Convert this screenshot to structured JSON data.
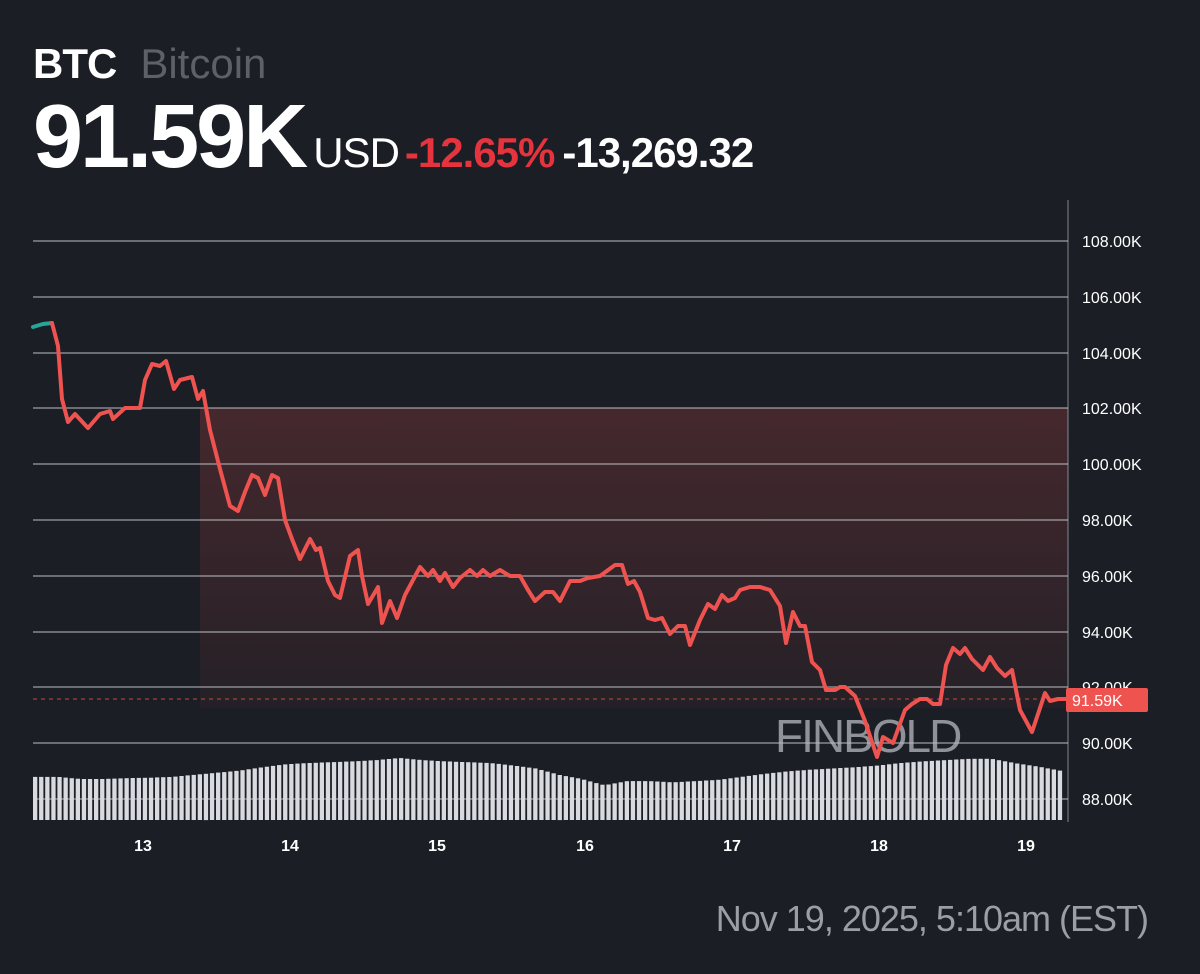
{
  "header": {
    "symbol": "BTC",
    "name": "Bitcoin",
    "price": "91.59K",
    "currency": "USD",
    "change_pct": "-12.65%",
    "change_abs": "-13,269.32"
  },
  "current_price_label": "91.59K",
  "watermark": "FINBOLD",
  "timestamp": "Nov 19, 2025, 5:10am (EST)",
  "colors": {
    "background": "#1b1e25",
    "line_down": "#ef5350",
    "line_up": "#26a69a",
    "negative_change": "#e5343d",
    "price_tag": "#ef5350",
    "volume": "#d9dae0",
    "grid": "#c8cad0"
  },
  "chart_data": {
    "type": "line",
    "title": "BTC Bitcoin",
    "xlabel": "",
    "ylabel": "USD",
    "ylim": [
      87000,
      109000
    ],
    "y_ticks": [
      "108.00K",
      "106.00K",
      "104.00K",
      "102.00K",
      "100.00K",
      "98.00K",
      "96.00K",
      "94.00K",
      "92.00K",
      "90.00K",
      "88.00K"
    ],
    "x_ticks": [
      "13",
      "14",
      "15",
      "16",
      "17",
      "18",
      "19"
    ],
    "grid": true,
    "current_value": 91590,
    "change_pct": -12.65,
    "change_abs": -13269.32,
    "series": [
      {
        "name": "BTC/USD",
        "x": [
          "12.4",
          "12.5",
          "12.6",
          "12.75",
          "12.9",
          "13.0",
          "13.1",
          "13.2",
          "13.3",
          "13.4",
          "13.5",
          "13.6",
          "13.7",
          "13.8",
          "13.9",
          "14.0",
          "14.1",
          "14.2",
          "14.3",
          "14.4",
          "14.5",
          "14.6",
          "14.7",
          "14.8",
          "14.9",
          "15.0",
          "15.2",
          "15.4",
          "15.6",
          "15.8",
          "16.0",
          "16.2",
          "16.3",
          "16.4",
          "16.5",
          "16.6",
          "16.7",
          "16.8",
          "16.9",
          "17.0",
          "17.1",
          "17.2",
          "17.3",
          "17.4",
          "17.5",
          "17.6",
          "17.7",
          "17.8",
          "17.9",
          "18.0",
          "18.1",
          "18.2",
          "18.3",
          "18.4",
          "18.5",
          "18.6",
          "18.7",
          "18.8",
          "18.9",
          "19.0",
          "19.1",
          "19.2",
          "19.3"
        ],
        "values": [
          105000,
          104200,
          101500,
          101300,
          101800,
          102000,
          103000,
          103600,
          102700,
          103100,
          101200,
          98500,
          99600,
          98900,
          99500,
          97300,
          96600,
          97300,
          95300,
          96900,
          95000,
          94300,
          95100,
          96300,
          96000,
          95600,
          96200,
          96000,
          95100,
          95800,
          96000,
          96400,
          95400,
          94500,
          94000,
          93500,
          94800,
          95300,
          95600,
          95500,
          93600,
          94500,
          92600,
          91900,
          92000,
          91700,
          90800,
          89500,
          90300,
          91200,
          91600,
          91400,
          93400,
          93200,
          93000,
          92700,
          92400,
          91200,
          90400,
          91800,
          91500,
          91600,
          91590
        ]
      }
    ],
    "volume": {
      "description": "Relative volume bars along bottom, peaking around Nov 14-15 and Nov 18",
      "relative_values": [
        0.55,
        0.55,
        0.5,
        0.5,
        0.52,
        0.53,
        0.55,
        0.6,
        0.65,
        0.7,
        0.78,
        0.85,
        0.88,
        0.9,
        0.92,
        0.95,
        1.0,
        0.95,
        0.92,
        0.9,
        0.88,
        0.82,
        0.75,
        0.6,
        0.5,
        0.35,
        0.45,
        0.45,
        0.42,
        0.45,
        0.48,
        0.55,
        0.62,
        0.68,
        0.72,
        0.75,
        0.78,
        0.82,
        0.88,
        0.92,
        0.95,
        0.98,
        0.98,
        0.88,
        0.8,
        0.7
      ]
    }
  }
}
